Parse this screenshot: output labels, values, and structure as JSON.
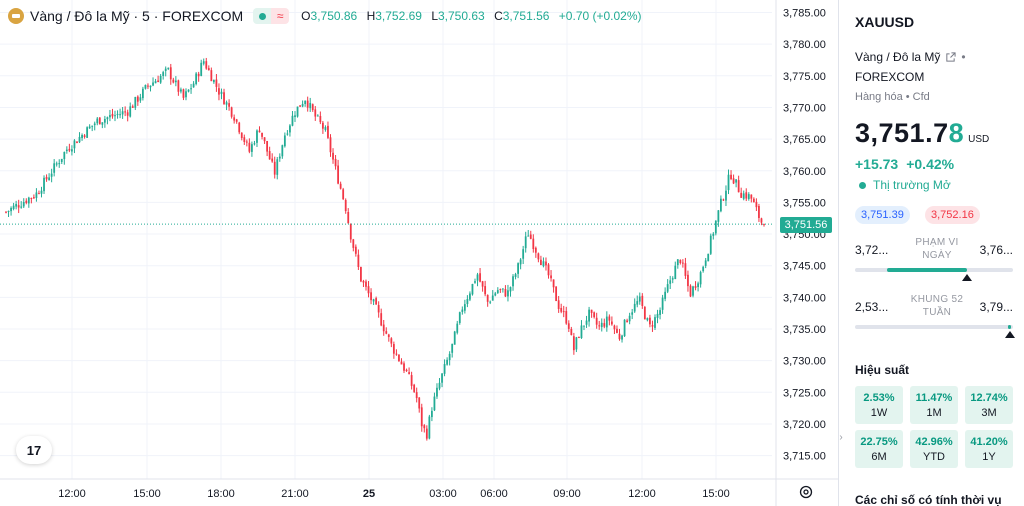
{
  "legend": {
    "title": "Vàng / Đô la Mỹ · 5 · FOREXCOM",
    "wave_symbol": "≈",
    "o_label": "O",
    "o_value": "3,750.86",
    "h_label": "H",
    "h_value": "3,752.69",
    "l_label": "L",
    "l_value": "3,750.63",
    "c_label": "C",
    "c_value": "3,751.56",
    "change": "+0.70 (+0.02%)"
  },
  "tv_logo": "17",
  "price_axis": {
    "labels": [
      "3,785.00",
      "3,780.00",
      "3,775.00",
      "3,770.00",
      "3,765.00",
      "3,760.00",
      "3,755.00",
      "3,750.00",
      "3,745.00",
      "3,740.00",
      "3,735.00",
      "3,730.00",
      "3,725.00",
      "3,720.00",
      "3,715.00"
    ],
    "current_price_tag": "3,751.56"
  },
  "time_axis": {
    "labels": [
      "12:00",
      "15:00",
      "18:00",
      "21:00",
      "25",
      "03:00",
      "06:00",
      "09:00",
      "12:00",
      "15:00"
    ]
  },
  "chart_data": {
    "type": "candlestick",
    "ylim": [
      3714,
      3786
    ],
    "up_color": "#22ab94",
    "down_color": "#f23645",
    "last_price": 3751.56,
    "close_path": [
      [
        0,
        3753.5
      ],
      [
        3,
        3756.4
      ],
      [
        6,
        3763.4
      ],
      [
        9,
        3767.9
      ],
      [
        12,
        3769.4
      ],
      [
        14,
        3773.4
      ],
      [
        16,
        3775.8
      ],
      [
        17.5,
        3771.4
      ],
      [
        18.5,
        3773.8
      ],
      [
        19.5,
        3777.4
      ],
      [
        21,
        3772.6
      ],
      [
        22.5,
        3768.7
      ],
      [
        24,
        3763.0
      ],
      [
        25,
        3766.8
      ],
      [
        26.5,
        3759.6
      ],
      [
        27.5,
        3765.7
      ],
      [
        28.5,
        3769.3
      ],
      [
        29.5,
        3771.5
      ],
      [
        30.5,
        3768.6
      ],
      [
        31.5,
        3766.3
      ],
      [
        32.5,
        3760.3
      ],
      [
        33.5,
        3754.4
      ],
      [
        34,
        3750.0
      ],
      [
        35,
        3743.0
      ],
      [
        36.5,
        3738.2
      ],
      [
        38,
        3732.5
      ],
      [
        39.5,
        3728.2
      ],
      [
        40.5,
        3724.3
      ],
      [
        41,
        3720.1
      ],
      [
        41.5,
        3718.2
      ],
      [
        42,
        3722.5
      ],
      [
        43,
        3727.5
      ],
      [
        44,
        3732.1
      ],
      [
        45,
        3738.3
      ],
      [
        46,
        3741.8
      ],
      [
        46.5,
        3743.8
      ],
      [
        47.5,
        3739.2
      ],
      [
        48.5,
        3741.2
      ],
      [
        49.5,
        3740.6
      ],
      [
        50.5,
        3744.6
      ],
      [
        51.5,
        3750.3
      ],
      [
        52.5,
        3746.8
      ],
      [
        53.5,
        3743.6
      ],
      [
        54.5,
        3738.8
      ],
      [
        55.5,
        3735.9
      ],
      [
        56,
        3731.6
      ],
      [
        56.5,
        3734.1
      ],
      [
        57.5,
        3737.4
      ],
      [
        58.5,
        3735.2
      ],
      [
        59.5,
        3736.6
      ],
      [
        60.5,
        3733.6
      ],
      [
        61.5,
        3737.5
      ],
      [
        62.5,
        3739.6
      ],
      [
        63.5,
        3735.2
      ],
      [
        64.5,
        3737.8
      ],
      [
        65.5,
        3742.6
      ],
      [
        66.5,
        3746.3
      ],
      [
        67.5,
        3740.5
      ],
      [
        68.5,
        3743.6
      ],
      [
        69.5,
        3748.7
      ],
      [
        70.5,
        3754.6
      ],
      [
        71.5,
        3759.6
      ],
      [
        72.5,
        3756.5
      ],
      [
        73.5,
        3755.8
      ],
      [
        74.5,
        3752.0
      ],
      [
        74.8,
        3751.56
      ]
    ]
  },
  "panel": {
    "symbol": "XAUUSD",
    "description": "Vàng / Đô la Mỹ",
    "desc_sep": "•",
    "exchange": "FOREXCOM",
    "category": "Hàng hóa • Cfd",
    "price_main": "3,751.7",
    "price_tail": "8",
    "currency": "USD",
    "change_abs": "+15.73",
    "change_pct": "+0.42%",
    "market_status": "Thị trường Mở",
    "bid": "3,751.39",
    "ask": "3,752.16",
    "day_range": {
      "low": "3,72...",
      "label_line1": "PHẠM VI",
      "label_line2": "NGÀY",
      "high": "3,76...",
      "fill_start": 0.2,
      "fill_end": 0.71,
      "marker": 0.71
    },
    "week52_range": {
      "low": "2,53...",
      "label_line1": "KHUNG 52",
      "label_line2": "TUẦN",
      "high": "3,79...",
      "fill_start": 0.97,
      "fill_end": 0.99,
      "marker": 0.98
    },
    "performance_title": "Hiệu suất",
    "performance": [
      {
        "value": "2.53%",
        "label": "1W"
      },
      {
        "value": "11.47%",
        "label": "1M"
      },
      {
        "value": "12.74%",
        "label": "3M"
      },
      {
        "value": "22.75%",
        "label": "6M"
      },
      {
        "value": "42.96%",
        "label": "YTD"
      },
      {
        "value": "41.20%",
        "label": "1Y"
      }
    ],
    "technicals_title": "Các chỉ số có tính thời vụ"
  },
  "colors": {
    "up": "#22ab94",
    "down": "#f23645",
    "accent": "#2962ff"
  },
  "icons": {
    "exchange_logo": "gold-coin-icon",
    "external_link": "external-link-icon",
    "settings": "gear-icon"
  }
}
